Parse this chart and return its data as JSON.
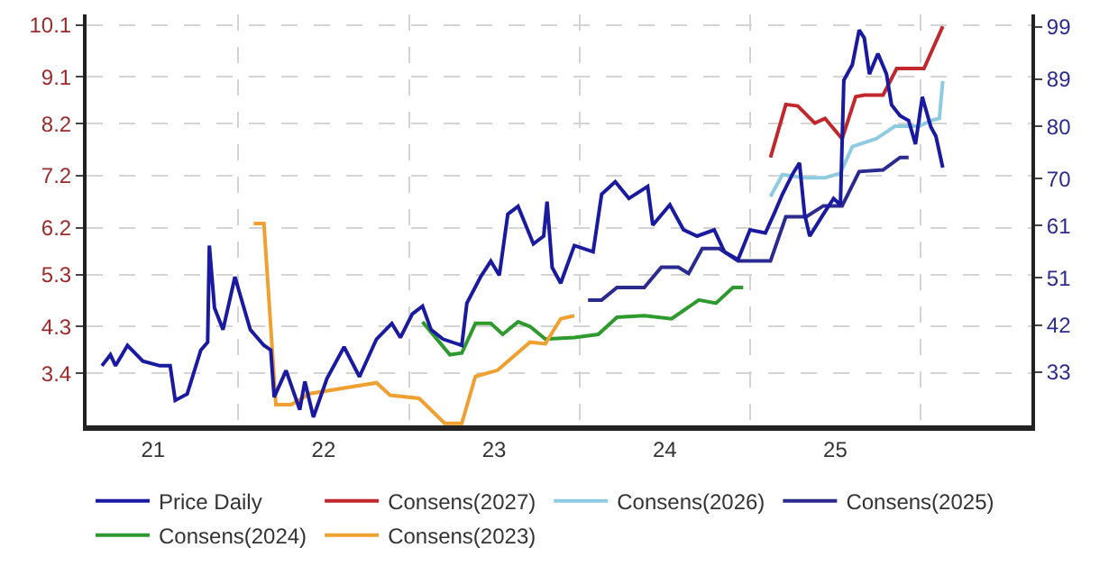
{
  "chart_data": {
    "type": "line",
    "xlim": [
      2020.61,
      2026.15
    ],
    "xticks": [
      {
        "value": 2021,
        "label": "21"
      },
      {
        "value": 2022,
        "label": "22"
      },
      {
        "value": 2023,
        "label": "23"
      },
      {
        "value": 2024,
        "label": "24"
      },
      {
        "value": 2025,
        "label": "25"
      }
    ],
    "ylim": [
      2.4,
      10.3
    ],
    "yticks": [
      3.4,
      4.3,
      5.3,
      6.2,
      7.2,
      8.2,
      9.1,
      10.1
    ],
    "y2lim": [
      22.8,
      101.4
    ],
    "y2ticks": [
      33,
      42,
      51,
      61,
      70,
      80,
      89,
      99
    ],
    "grid": true,
    "legend": "bottom",
    "line_style": "solid",
    "marker": "none",
    "series": [
      {
        "name": "Price Daily",
        "color": "#1a1aa0",
        "axis": "y2",
        "x": [
          2020.7,
          2020.75,
          2020.78,
          2020.85,
          2020.94,
          2021.04,
          2021.1,
          2021.13,
          2021.2,
          2021.28,
          2021.32,
          2021.33,
          2021.36,
          2021.41,
          2021.48,
          2021.57,
          2021.65,
          2021.69,
          2021.71,
          2021.78,
          2021.86,
          2021.89,
          2021.94,
          2022.02,
          2022.12,
          2022.21,
          2022.31,
          2022.4,
          2022.45,
          2022.52,
          2022.58,
          2022.63,
          2022.7,
          2022.81,
          2022.84,
          2022.92,
          2022.98,
          2023.03,
          2023.08,
          2023.14,
          2023.23,
          2023.29,
          2023.31,
          2023.34,
          2023.39,
          2023.47,
          2023.58,
          2023.63,
          2023.71,
          2023.79,
          2023.9,
          2023.93,
          2024.03,
          2024.11,
          2024.19,
          2024.29,
          2024.35,
          2024.43,
          2024.5,
          2024.59,
          2024.64,
          2024.69,
          2024.75,
          2024.79,
          2024.82,
          2024.85,
          2024.93,
          2024.99,
          2025.03,
          2025.05,
          2025.1,
          2025.14,
          2025.17,
          2025.2,
          2025.25,
          2025.3,
          2025.33,
          2025.38,
          2025.43,
          2025.47,
          2025.51,
          2025.56,
          2025.59,
          2025.63
        ],
        "values": [
          34.2,
          36.3,
          34.2,
          38.1,
          35.1,
          34.2,
          34.2,
          27.6,
          28.8,
          37.2,
          38.7,
          57.2,
          45.3,
          41.1,
          51.2,
          41.1,
          38.1,
          37.2,
          28.2,
          33.3,
          25.8,
          31.2,
          24.4,
          31.8,
          37.8,
          32.1,
          39.3,
          42.3,
          39.6,
          44.1,
          45.6,
          41.1,
          39.3,
          38.1,
          46.2,
          51.2,
          54.2,
          51.5,
          63.2,
          64.7,
          57.5,
          59.0,
          65.6,
          53.0,
          50.0,
          57.2,
          56.0,
          67.0,
          69.4,
          66.2,
          68.5,
          61.1,
          65.0,
          60.2,
          59.0,
          60.2,
          56.0,
          54.5,
          60.2,
          59.6,
          63.2,
          67.0,
          70.9,
          73.0,
          63.2,
          59.0,
          63.2,
          66.2,
          65.0,
          88.8,
          91.8,
          98.4,
          96.9,
          90.0,
          93.9,
          90.0,
          84.1,
          82.0,
          81.1,
          76.6,
          85.6,
          79.9,
          78.1,
          72.1
        ]
      },
      {
        "name": "Consens(2027)",
        "color": "#c0282d",
        "axis": "y",
        "x": [
          2024.62,
          2024.71,
          2024.78,
          2024.88,
          2024.94,
          2025.04,
          2025.12,
          2025.17,
          2025.28,
          2025.36,
          2025.52,
          2025.63
        ],
        "values": [
          7.55,
          8.57,
          8.54,
          8.21,
          8.3,
          7.91,
          8.72,
          8.75,
          8.75,
          9.26,
          9.26,
          10.07
        ]
      },
      {
        "name": "Consens(2026)",
        "color": "#8fcbe0",
        "axis": "y",
        "x": [
          2024.62,
          2024.69,
          2024.82,
          2024.94,
          2025.03,
          2025.1,
          2025.24,
          2025.35,
          2025.49,
          2025.57,
          2025.61,
          2025.63
        ],
        "values": [
          6.8,
          7.22,
          7.16,
          7.16,
          7.25,
          7.76,
          7.91,
          8.15,
          8.15,
          8.27,
          8.3,
          9.02
        ]
      },
      {
        "name": "Consens(2025)",
        "color": "#2b2b8f",
        "axis": "y",
        "x": [
          2023.55,
          2023.63,
          2023.72,
          2023.88,
          2023.98,
          2024.08,
          2024.14,
          2024.22,
          2024.32,
          2024.43,
          2024.62,
          2024.71,
          2024.83,
          2024.93,
          2025.04,
          2025.14,
          2025.28,
          2025.38,
          2025.43
        ],
        "values": [
          4.81,
          4.81,
          5.05,
          5.05,
          5.44,
          5.44,
          5.32,
          5.8,
          5.8,
          5.56,
          5.56,
          6.41,
          6.41,
          6.62,
          6.62,
          7.28,
          7.31,
          7.55,
          7.55
        ]
      },
      {
        "name": "Consens(2024)",
        "color": "#2e9a2e",
        "axis": "y",
        "x": [
          2022.58,
          2022.74,
          2022.81,
          2022.89,
          2022.98,
          2023.05,
          2023.14,
          2023.21,
          2023.3,
          2023.47,
          2023.61,
          2023.72,
          2023.88,
          2024.04,
          2024.2,
          2024.3,
          2024.4,
          2024.46
        ],
        "values": [
          4.39,
          3.76,
          3.79,
          4.36,
          4.36,
          4.15,
          4.39,
          4.3,
          4.06,
          4.09,
          4.15,
          4.48,
          4.51,
          4.45,
          4.81,
          4.75,
          5.05,
          5.05
        ]
      },
      {
        "name": "Consens(2023)",
        "color": "#f0a030",
        "axis": "y",
        "x": [
          2021.59,
          2021.65,
          2021.72,
          2021.81,
          2021.92,
          2022.31,
          2022.39,
          2022.56,
          2022.71,
          2022.81,
          2022.89,
          2023.02,
          2023.21,
          2023.3,
          2023.39,
          2023.47
        ],
        "values": [
          6.28,
          6.28,
          2.8,
          2.8,
          3.01,
          3.22,
          2.98,
          2.92,
          2.44,
          2.44,
          3.34,
          3.46,
          4.0,
          3.97,
          4.45,
          4.51
        ]
      }
    ]
  }
}
